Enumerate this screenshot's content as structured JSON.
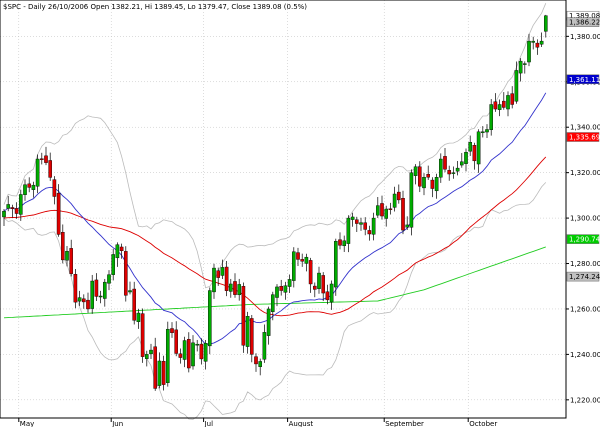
{
  "header": {
    "symbol": "$SPC",
    "text": "$SPC - Daily 26/10/2006 Open 1382.21, Hi 1389.45, Lo 1379.47, Close 1389.08 (0.5%)"
  },
  "chart_data": {
    "type": "candlestick",
    "ylim": [
      1212,
      1396
    ],
    "y_ticks": [
      1220,
      1240,
      1260,
      1280,
      1300,
      1320,
      1340,
      1360,
      1380
    ],
    "y_tick_labels": [
      "1,220.00",
      "1,240.00",
      "1,260.00",
      "1,280.00",
      "1,300.00",
      "1,320.00",
      "1,340.00",
      "1,360.00",
      "1,380.00"
    ],
    "x_months": [
      {
        "label": "May",
        "index": 4
      },
      {
        "label": "Jun",
        "index": 26
      },
      {
        "label": "Jul",
        "index": 48
      },
      {
        "label": "August",
        "index": 68
      },
      {
        "label": "September",
        "index": 91
      },
      {
        "label": "October",
        "index": 111
      }
    ],
    "n_bars": 130,
    "closes": [
      1303.0,
      1306.0,
      1304.1,
      1302.0,
      1310.4,
      1314.7,
      1313.5,
      1314.5,
      1326.0,
      1326.0,
      1324.4,
      1317.9,
      1309.5,
      1292.8,
      1281.6,
      1285.4,
      1275.5,
      1263.0,
      1265.0,
      1263.1,
      1260.0,
      1272.3,
      1265.5,
      1265.7,
      1271.8,
      1275.1,
      1284.0,
      1288.3,
      1285.6,
      1266.0,
      1268.1,
      1255.0,
      1258.2,
      1239.0,
      1240.0,
      1241.9,
      1225.0,
      1237.1,
      1226.7,
      1251.1,
      1249.5,
      1240.4,
      1238.6,
      1246.1,
      1234.0,
      1245.1,
      1244.5,
      1238.0,
      1244.9,
      1268.1,
      1278.0,
      1273.8,
      1278.3,
      1268.0,
      1271.0,
      1266.3,
      1270.8,
      1244.0,
      1256.8,
      1240.0,
      1235.8,
      1236.9,
      1249.7,
      1260.0,
      1266.3,
      1269.7,
      1268.1,
      1270.2,
      1273.0,
      1285.2,
      1281.8,
      1281.0,
      1282.8,
      1271.0,
      1268.6,
      1275.8,
      1267.0,
      1264.0,
      1271.0,
      1289.8,
      1288.0,
      1290.0,
      1300.0,
      1300.5,
      1297.6,
      1298.0,
      1295.0,
      1293.0,
      1300.0,
      1305.5,
      1300.9,
      1304.0,
      1304.0,
      1310.6,
      1308.0,
      1294.7,
      1297.0,
      1320.0,
      1322.6,
      1314.0,
      1318.0,
      1318.0,
      1313.0,
      1318.0,
      1326.0,
      1321.5,
      1319.4,
      1320.0,
      1322.0,
      1324.8,
      1329.0,
      1333.4,
      1325.2,
      1338.0,
      1338.0,
      1339.0,
      1350.0,
      1348.0,
      1350.0,
      1348.7,
      1354.0,
      1350.0,
      1365.0,
      1369.1,
      1368.0,
      1377.9,
      1377.9,
      1375.2,
      1377.9,
      1389.08
    ],
    "overlays": [
      "20-day MA (blue)",
      "50-day MA (red)",
      "200-day MA (green)",
      "Bollinger Bands (grey)"
    ],
    "price_tags": [
      {
        "label": "1,389.08",
        "value": 1389.08,
        "color": "#ffffff",
        "text_color": "#000000"
      },
      {
        "label": "1,386.22",
        "value": 1386.22,
        "color": "#c0c0c0",
        "text_color": "#000000"
      },
      {
        "label": "1,361.11",
        "value": 1361.11,
        "color": "#0000cc",
        "text_color": "#ffffff"
      },
      {
        "label": "1,335.69",
        "value": 1335.69,
        "color": "#ff0000",
        "text_color": "#ffffff"
      },
      {
        "label": "1,290.74",
        "value": 1290.74,
        "color": "#00cc00",
        "text_color": "#ffffff"
      },
      {
        "label": "1,274.24",
        "value": 1274.24,
        "color": "#c0c0c0",
        "text_color": "#000000"
      }
    ],
    "colors": {
      "up": "#00aa00",
      "down": "#dd0000",
      "ma20": "#3333cc",
      "ma50": "#dd0000",
      "ma200": "#22cc22",
      "bands": "#bbbbbb",
      "grid": "#bbbbbb"
    }
  }
}
